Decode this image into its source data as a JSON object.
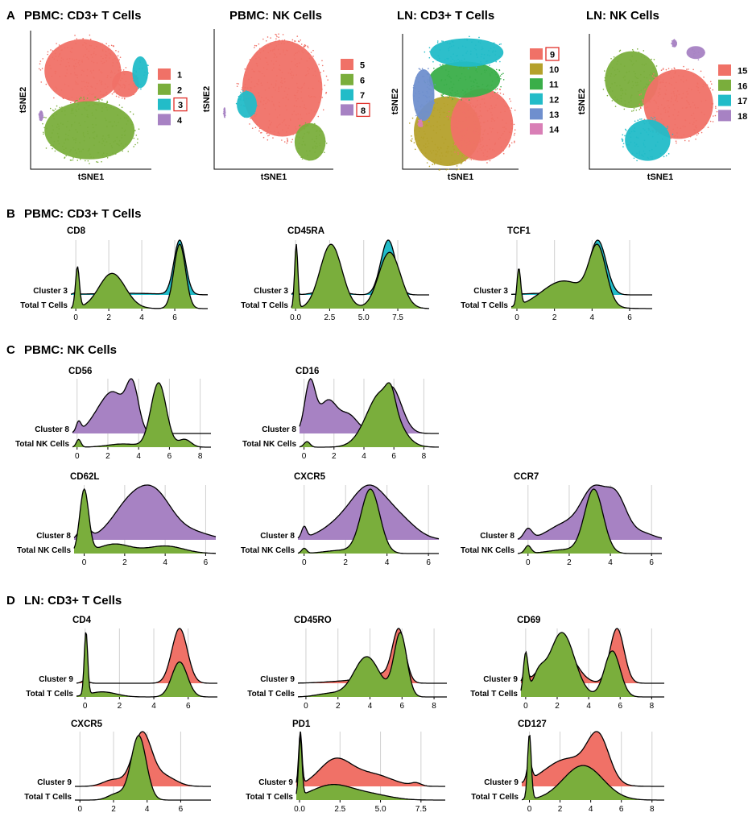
{
  "panel_labels": {
    "A": "A",
    "B": "B",
    "C": "C",
    "D": "D"
  },
  "section_titles": {
    "B": "PBMC: CD3+ T Cells",
    "C": "PBMC: NK Cells",
    "D": "LN: CD3+ T Cells"
  },
  "colors": {
    "red": "#F07167",
    "green": "#7AAE3C",
    "cyan": "#22BCC8",
    "purple": "#A782C3",
    "darkgreen": "#3AAE49",
    "olive": "#B5A12B",
    "blue": "#6F8FCE",
    "pink": "#D97FB6",
    "grid": "#d0d0d0",
    "box": "#e0302a"
  },
  "chart_data": [
    {
      "type": "scatter",
      "title": "PBMC: CD3+ T Cells",
      "xlabel": "tSNE1",
      "ylabel": "tSNE2",
      "legend": [
        {
          "label": "1",
          "color": "#F07167",
          "boxed": false
        },
        {
          "label": "2",
          "color": "#7AAE3C",
          "boxed": false
        },
        {
          "label": "3",
          "color": "#22BCC8",
          "boxed": true
        },
        {
          "label": "4",
          "color": "#A782C3",
          "boxed": false
        }
      ],
      "clusters": [
        {
          "color": "#F07167",
          "x": 0.42,
          "y": 0.72,
          "rx": 0.34,
          "ry": 0.24
        },
        {
          "color": "#F07167",
          "x": 0.8,
          "y": 0.62,
          "rx": 0.12,
          "ry": 0.1
        },
        {
          "color": "#7AAE3C",
          "x": 0.48,
          "y": 0.27,
          "rx": 0.4,
          "ry": 0.22
        },
        {
          "color": "#22BCC8",
          "x": 0.93,
          "y": 0.71,
          "rx": 0.07,
          "ry": 0.12
        },
        {
          "color": "#A782C3",
          "x": 0.05,
          "y": 0.38,
          "rx": 0.02,
          "ry": 0.04
        }
      ]
    },
    {
      "type": "scatter",
      "title": "PBMC: NK Cells",
      "xlabel": "tSNE1",
      "ylabel": "tSNE2",
      "legend": [
        {
          "label": "5",
          "color": "#F07167",
          "boxed": false
        },
        {
          "label": "6",
          "color": "#7AAE3C",
          "boxed": false
        },
        {
          "label": "7",
          "color": "#22BCC8",
          "boxed": false
        },
        {
          "label": "8",
          "color": "#A782C3",
          "boxed": true
        }
      ],
      "clusters": [
        {
          "color": "#F07167",
          "x": 0.57,
          "y": 0.58,
          "rx": 0.36,
          "ry": 0.36
        },
        {
          "color": "#22BCC8",
          "x": 0.25,
          "y": 0.46,
          "rx": 0.09,
          "ry": 0.1
        },
        {
          "color": "#7AAE3C",
          "x": 0.82,
          "y": 0.18,
          "rx": 0.14,
          "ry": 0.14
        },
        {
          "color": "#A782C3",
          "x": 0.05,
          "y": 0.4,
          "rx": 0.01,
          "ry": 0.04
        }
      ]
    },
    {
      "type": "scatter",
      "title": "LN: CD3+ T Cells",
      "xlabel": "tSNE1",
      "ylabel": "tSNE2",
      "legend": [
        {
          "label": "9",
          "color": "#F07167",
          "boxed": true
        },
        {
          "label": "10",
          "color": "#B5A12B",
          "boxed": false
        },
        {
          "label": "11",
          "color": "#3AAE49",
          "boxed": false
        },
        {
          "label": "12",
          "color": "#22BCC8",
          "boxed": false
        },
        {
          "label": "13",
          "color": "#6F8FCE",
          "boxed": false
        },
        {
          "label": "14",
          "color": "#D97FB6",
          "boxed": false
        }
      ],
      "clusters": [
        {
          "color": "#B5A12B",
          "x": 0.37,
          "y": 0.27,
          "rx": 0.31,
          "ry": 0.27
        },
        {
          "color": "#F07167",
          "x": 0.69,
          "y": 0.32,
          "rx": 0.29,
          "ry": 0.28
        },
        {
          "color": "#3AAE49",
          "x": 0.53,
          "y": 0.67,
          "rx": 0.33,
          "ry": 0.14
        },
        {
          "color": "#22BCC8",
          "x": 0.55,
          "y": 0.88,
          "rx": 0.34,
          "ry": 0.11
        },
        {
          "color": "#6F8FCE",
          "x": 0.15,
          "y": 0.55,
          "rx": 0.1,
          "ry": 0.2
        },
        {
          "color": "#D97FB6",
          "x": 0.12,
          "y": 0.33,
          "rx": 0.02,
          "ry": 0.03
        }
      ]
    },
    {
      "type": "scatter",
      "title": "LN: NK Cells",
      "xlabel": "tSNE1",
      "ylabel": "tSNE2",
      "legend": [
        {
          "label": "15",
          "color": "#F07167",
          "boxed": false
        },
        {
          "label": "16",
          "color": "#7AAE3C",
          "boxed": false
        },
        {
          "label": "17",
          "color": "#22BCC8",
          "boxed": false
        },
        {
          "label": "18",
          "color": "#A782C3",
          "boxed": false
        }
      ],
      "clusters": [
        {
          "color": "#7AAE3C",
          "x": 0.28,
          "y": 0.67,
          "rx": 0.2,
          "ry": 0.22
        },
        {
          "color": "#F07167",
          "x": 0.63,
          "y": 0.48,
          "rx": 0.26,
          "ry": 0.27
        },
        {
          "color": "#22BCC8",
          "x": 0.4,
          "y": 0.2,
          "rx": 0.17,
          "ry": 0.16
        },
        {
          "color": "#A782C3",
          "x": 0.76,
          "y": 0.88,
          "rx": 0.07,
          "ry": 0.05
        },
        {
          "color": "#A782C3",
          "x": 0.6,
          "y": 0.95,
          "rx": 0.02,
          "ry": 0.03
        }
      ]
    },
    {
      "type": "area",
      "title": "CD8",
      "cluster_label": "Cluster 3",
      "total_label": "Total T Cells",
      "cluster_color": "#22BCC8",
      "xlim": [
        -0.3,
        8
      ],
      "ticks": [
        0,
        2,
        4,
        6
      ],
      "tick_labels": [
        "0",
        "2",
        "4",
        "6"
      ],
      "cluster_peaks": [
        [
          0,
          0.03,
          0.15
        ],
        [
          3,
          0.03,
          2.2
        ],
        [
          6.3,
          1.0,
          0.35
        ]
      ],
      "total_peaks": [
        [
          0.1,
          0.35,
          0.12
        ],
        [
          2.2,
          0.3,
          0.8
        ],
        [
          6.3,
          0.55,
          0.35
        ]
      ]
    },
    {
      "type": "area",
      "title": "CD45RA",
      "cluster_label": "Cluster 3",
      "total_label": "Total T Cells",
      "cluster_color": "#22BCC8",
      "xlim": [
        -0.3,
        9.8
      ],
      "ticks": [
        0,
        2.5,
        5,
        7.5
      ],
      "tick_labels": [
        "0.0",
        "2.5",
        "5.0",
        "7.5"
      ],
      "cluster_peaks": [
        [
          0,
          0.08,
          0.15
        ],
        [
          2.5,
          0.1,
          0.9
        ],
        [
          6.8,
          1.0,
          0.55
        ]
      ],
      "total_peaks": [
        [
          0.05,
          0.4,
          0.12
        ],
        [
          2.6,
          0.4,
          0.8
        ],
        [
          6.9,
          0.35,
          0.8
        ]
      ]
    },
    {
      "type": "area",
      "title": "TCF1",
      "cluster_label": "Cluster 3",
      "total_label": "Total T Cells",
      "cluster_color": "#22BCC8",
      "xlim": [
        -0.3,
        7.2
      ],
      "ticks": [
        0,
        2,
        4,
        6
      ],
      "tick_labels": [
        "0",
        "2",
        "4",
        "6"
      ],
      "cluster_peaks": [
        [
          1.5,
          0.03,
          1.2
        ],
        [
          4.3,
          1.0,
          0.45
        ]
      ],
      "total_peaks": [
        [
          0.1,
          0.4,
          0.1
        ],
        [
          2.5,
          0.3,
          1.2
        ],
        [
          4.3,
          0.6,
          0.45
        ]
      ]
    },
    {
      "type": "area",
      "title": "CD56",
      "cluster_label": "Cluster 8",
      "total_label": "Total NK Cells",
      "cluster_color": "#A782C3",
      "xlim": [
        -0.3,
        8.7
      ],
      "ticks": [
        0,
        2,
        4,
        6,
        8
      ],
      "tick_labels": [
        "0",
        "2",
        "4",
        "6",
        "8"
      ],
      "cluster_peaks": [
        [
          0.1,
          0.18,
          0.15
        ],
        [
          1.8,
          0.5,
          0.8
        ],
        [
          3.6,
          0.85,
          0.4
        ],
        [
          2.6,
          0.4,
          0.6
        ]
      ],
      "total_peaks": [
        [
          0.1,
          0.12,
          0.15
        ],
        [
          5.3,
          1.0,
          0.5
        ],
        [
          7.0,
          0.12,
          0.4
        ],
        [
          3.0,
          0.05,
          1.0
        ]
      ]
    },
    {
      "type": "area",
      "title": "CD16",
      "cluster_label": "Cluster 8",
      "total_label": "Total NK Cells",
      "cluster_color": "#A782C3",
      "xlim": [
        -0.3,
        9
      ],
      "ticks": [
        0,
        2,
        4,
        6,
        8
      ],
      "tick_labels": [
        "0",
        "2",
        "4",
        "6",
        "8"
      ],
      "cluster_peaks": [
        [
          0.4,
          0.85,
          0.35
        ],
        [
          1.6,
          0.55,
          0.6
        ],
        [
          3.0,
          0.3,
          0.6
        ],
        [
          5.8,
          0.8,
          0.7
        ]
      ],
      "total_peaks": [
        [
          0.2,
          0.1,
          0.2
        ],
        [
          5.2,
          1.0,
          1.0
        ],
        [
          5.8,
          0.3,
          0.3
        ]
      ]
    },
    {
      "type": "area",
      "title": "CD62L",
      "cluster_label": "Cluster 8",
      "total_label": "Total NK Cells",
      "cluster_color": "#A782C3",
      "xlim": [
        -0.5,
        6.5
      ],
      "ticks": [
        0,
        2,
        4,
        6
      ],
      "tick_labels": [
        "0",
        "2",
        "4",
        "6"
      ],
      "cluster_peaks": [
        [
          0,
          0.15,
          0.25
        ],
        [
          2.3,
          0.38,
          0.9
        ],
        [
          3.6,
          0.38,
          0.8
        ],
        [
          5.3,
          0.08,
          0.9
        ]
      ],
      "total_peaks": [
        [
          0,
          1.0,
          0.22
        ],
        [
          1.5,
          0.15,
          0.8
        ],
        [
          4,
          0.12,
          0.9
        ]
      ]
    },
    {
      "type": "area",
      "title": "CXCR5",
      "cluster_label": "Cluster 8",
      "total_label": "Total NK Cells",
      "cluster_color": "#A782C3",
      "xlim": [
        -0.3,
        6.5
      ],
      "ticks": [
        0,
        2,
        4,
        6
      ],
      "tick_labels": [
        "0",
        "2",
        "4",
        "6"
      ],
      "cluster_peaks": [
        [
          0,
          0.12,
          0.12
        ],
        [
          2.0,
          0.2,
          1.0
        ],
        [
          3.2,
          0.45,
          0.8
        ],
        [
          4.6,
          0.2,
          0.8
        ]
      ],
      "total_peaks": [
        [
          0,
          0.08,
          0.12
        ],
        [
          1.8,
          0.05,
          0.8
        ],
        [
          3.2,
          1.0,
          0.45
        ]
      ]
    },
    {
      "type": "area",
      "title": "CCR7",
      "cluster_label": "Cluster 8",
      "total_label": "Total NK Cells",
      "cluster_color": "#A782C3",
      "xlim": [
        -0.5,
        6.5
      ],
      "ticks": [
        0,
        2,
        4,
        6
      ],
      "tick_labels": [
        "0",
        "2",
        "4",
        "6"
      ],
      "cluster_peaks": [
        [
          0,
          0.12,
          0.2
        ],
        [
          1.8,
          0.18,
          0.8
        ],
        [
          3.2,
          0.55,
          0.6
        ],
        [
          4.3,
          0.45,
          0.5
        ],
        [
          5.5,
          0.08,
          0.6
        ]
      ],
      "total_peaks": [
        [
          0,
          0.12,
          0.15
        ],
        [
          3.2,
          1.0,
          0.45
        ],
        [
          1.8,
          0.06,
          0.8
        ]
      ]
    },
    {
      "type": "area",
      "title": "CD4",
      "cluster_label": "Cluster 9",
      "total_label": "Total T Cells",
      "cluster_color": "#F07167",
      "xlim": [
        -0.5,
        7.7
      ],
      "ticks": [
        0,
        2,
        4,
        6
      ],
      "tick_labels": [
        "0",
        "2",
        "4",
        "6"
      ],
      "cluster_peaks": [
        [
          0,
          0.05,
          0.2
        ],
        [
          5.5,
          1.0,
          0.45
        ]
      ],
      "total_peaks": [
        [
          0.05,
          1.0,
          0.1
        ],
        [
          1.0,
          0.08,
          0.8
        ],
        [
          5.5,
          0.55,
          0.45
        ]
      ]
    },
    {
      "type": "area",
      "title": "CD45RO",
      "cluster_label": "Cluster 9",
      "total_label": "Total T Cells",
      "cluster_color": "#F07167",
      "xlim": [
        -0.5,
        8.8
      ],
      "ticks": [
        0,
        2,
        4,
        6,
        8
      ],
      "tick_labels": [
        "0",
        "2",
        "4",
        "6",
        "8"
      ],
      "cluster_peaks": [
        [
          3,
          0.05,
          1.5
        ],
        [
          5.8,
          1.0,
          0.4
        ],
        [
          4.5,
          0.15,
          0.8
        ]
      ],
      "total_peaks": [
        [
          3.8,
          0.35,
          0.8
        ],
        [
          5.9,
          0.55,
          0.4
        ],
        [
          1.5,
          0.03,
          0.8
        ]
      ]
    },
    {
      "type": "area",
      "title": "CD69",
      "cluster_label": "Cluster 9",
      "total_label": "Total T Cells",
      "cluster_color": "#F07167",
      "xlim": [
        -0.3,
        8.8
      ],
      "ticks": [
        0,
        2,
        4,
        6,
        8
      ],
      "tick_labels": [
        "0",
        "2",
        "4",
        "6",
        "8"
      ],
      "cluster_peaks": [
        [
          0,
          0.25,
          0.15
        ],
        [
          2.4,
          0.6,
          0.8
        ],
        [
          5.8,
          1.0,
          0.45
        ],
        [
          0.8,
          0.15,
          0.4
        ]
      ],
      "total_peaks": [
        [
          0,
          0.45,
          0.15
        ],
        [
          2.3,
          0.7,
          0.8
        ],
        [
          5.5,
          0.5,
          0.5
        ],
        [
          0.8,
          0.2,
          0.4
        ]
      ]
    },
    {
      "type": "area",
      "title": "CXCR5",
      "cluster_label": "Cluster 9",
      "total_label": "Total T Cells",
      "cluster_color": "#F07167",
      "xlim": [
        -0.3,
        7.8
      ],
      "ticks": [
        0,
        2,
        4,
        6
      ],
      "tick_labels": [
        "0",
        "2",
        "4",
        "6"
      ],
      "cluster_peaks": [
        [
          2.0,
          0.12,
          0.6
        ],
        [
          3.7,
          0.95,
          0.55
        ],
        [
          5.0,
          0.18,
          0.7
        ]
      ],
      "total_peaks": [
        [
          3.5,
          1.0,
          0.45
        ],
        [
          2.2,
          0.1,
          0.5
        ]
      ]
    },
    {
      "type": "area",
      "title": "PD1",
      "cluster_label": "Cluster 9",
      "total_label": "Total T Cells",
      "cluster_color": "#F07167",
      "xlim": [
        -0.2,
        9
      ],
      "ticks": [
        0,
        2.5,
        5,
        7.5
      ],
      "tick_labels": [
        "0.0",
        "2.5",
        "5.0",
        "7.5"
      ],
      "cluster_peaks": [
        [
          0.05,
          0.9,
          0.1
        ],
        [
          2.2,
          0.45,
          1.0
        ],
        [
          4.5,
          0.2,
          1.2
        ],
        [
          7.2,
          0.05,
          0.3
        ]
      ],
      "total_peaks": [
        [
          0.05,
          1.0,
          0.1
        ],
        [
          2.0,
          0.25,
          1.3
        ],
        [
          4.5,
          0.08,
          1.2
        ]
      ]
    },
    {
      "type": "area",
      "title": "CD127",
      "cluster_label": "Cluster 9",
      "total_label": "Total T Cells",
      "cluster_color": "#F07167",
      "xlim": [
        -0.5,
        8.8
      ],
      "ticks": [
        0,
        2,
        4,
        6,
        8
      ],
      "tick_labels": [
        "0",
        "2",
        "4",
        "6",
        "8"
      ],
      "cluster_peaks": [
        [
          0,
          0.25,
          0.15
        ],
        [
          2.5,
          0.35,
          1.5
        ],
        [
          4.5,
          0.55,
          0.7
        ]
      ],
      "total_peaks": [
        [
          0,
          0.95,
          0.12
        ],
        [
          3.5,
          0.5,
          1.3
        ]
      ]
    }
  ]
}
